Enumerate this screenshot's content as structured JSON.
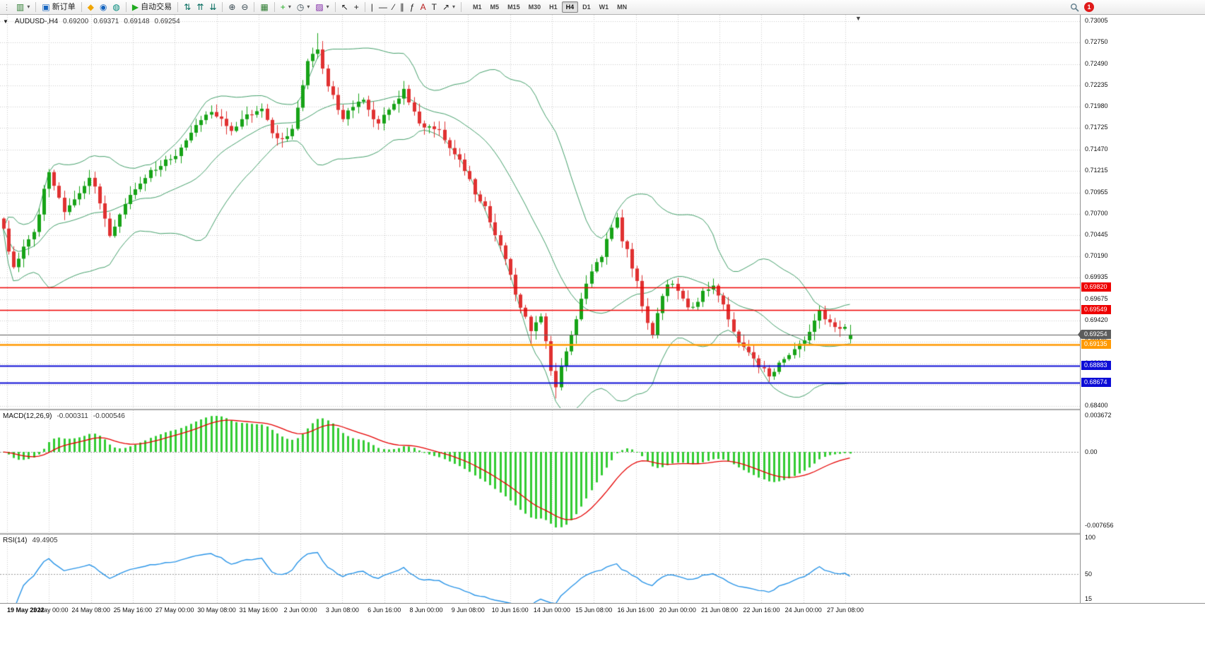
{
  "toolbar": {
    "grip_glyph": "⋮",
    "caret_glyph": "▾",
    "groups": [
      {
        "items": [
          {
            "name": "new-chart-icon",
            "glyph": "▥",
            "color": "#2f7d32",
            "caret": true
          }
        ]
      },
      {
        "items": [
          {
            "name": "new-order-button",
            "icon_name": "new-order-icon",
            "glyph": "▣",
            "color": "#1565c0",
            "label": "新订单"
          }
        ]
      },
      {
        "items": [
          {
            "name": "alerts-icon",
            "glyph": "◆",
            "color": "#f0a500"
          },
          {
            "name": "community-icon",
            "glyph": "◉",
            "color": "#1565c0"
          },
          {
            "name": "market-watch-icon",
            "glyph": "◍",
            "color": "#00897b"
          }
        ]
      },
      {
        "items": [
          {
            "name": "autotrade-button",
            "icon_name": "autotrade-play-icon",
            "glyph": "▶",
            "color": "#1faa1f",
            "label": "自动交易"
          }
        ]
      },
      {
        "items": [
          {
            "name": "tile-windows-icon",
            "glyph": "⇅",
            "color": "#00695c"
          },
          {
            "name": "cascade-windows-icon",
            "glyph": "⇈",
            "color": "#00695c"
          },
          {
            "name": "arrange-windows-icon",
            "glyph": "⇊",
            "color": "#00695c"
          }
        ]
      },
      {
        "items": [
          {
            "name": "zoom-in-icon",
            "glyph": "⊕",
            "color": "#37474f"
          },
          {
            "name": "zoom-out-icon",
            "glyph": "⊖",
            "color": "#37474f"
          }
        ]
      },
      {
        "items": [
          {
            "name": "tile-grid-icon",
            "glyph": "▦",
            "color": "#2f7d32"
          }
        ]
      },
      {
        "items": [
          {
            "name": "indicators-icon",
            "glyph": "+",
            "color": "#1faa1f",
            "caret": true
          },
          {
            "name": "periods-icon",
            "glyph": "◷",
            "color": "#37474f",
            "caret": true
          },
          {
            "name": "templates-icon",
            "glyph": "▨",
            "color": "#7b1fa2",
            "caret": true
          }
        ]
      },
      {
        "items": [
          {
            "name": "cursor-icon",
            "glyph": "↖",
            "color": "#222"
          },
          {
            "name": "crosshair-icon",
            "glyph": "+",
            "color": "#222"
          }
        ]
      },
      {
        "items": [
          {
            "name": "vertical-line-icon",
            "glyph": "|",
            "color": "#222"
          },
          {
            "name": "horizontal-line-icon",
            "glyph": "—",
            "color": "#222"
          },
          {
            "name": "trendline-icon",
            "glyph": "∕",
            "color": "#222"
          },
          {
            "name": "channel-icon",
            "glyph": "∥",
            "color": "#222"
          },
          {
            "name": "fibonacci-icon",
            "glyph": "ƒ",
            "color": "#222"
          },
          {
            "name": "text-icon",
            "glyph": "A",
            "color": "#b71c1c"
          },
          {
            "name": "label-icon",
            "glyph": "T",
            "color": "#222"
          },
          {
            "name": "arrows-icon",
            "glyph": "↗",
            "color": "#222",
            "caret": true
          }
        ]
      }
    ],
    "timeframes": [
      "M1",
      "M5",
      "M15",
      "M30",
      "H1",
      "H4",
      "D1",
      "W1",
      "MN"
    ],
    "active_timeframe": "H4",
    "notification_count": "1"
  },
  "chart": {
    "oct_glyph": "▼",
    "shift_marker_glyph": "▼",
    "symbol_header": {
      "symbol": "AUDUSD-,H4",
      "open": "0.69200",
      "high": "0.69371",
      "low": "0.69148",
      "close": "0.69254"
    },
    "price_axis_labels": [
      "0.73005",
      "0.72750",
      "0.72490",
      "0.72235",
      "0.71980",
      "0.71725",
      "0.71470",
      "0.71215",
      "0.70955",
      "0.70700",
      "0.70445",
      "0.70190",
      "0.69935",
      "0.69675",
      "0.69420",
      "0.69165",
      "0.68910",
      "0.68655",
      "0.68400"
    ],
    "levels": [
      {
        "name": "resistance-line-1",
        "value": "0.69820",
        "price": 0.6982,
        "color": "#ee0000",
        "lw": 1.5
      },
      {
        "name": "resistance-line-2",
        "value": "0.69549",
        "price": 0.69549,
        "color": "#ee0000",
        "lw": 1.5
      },
      {
        "name": "current-price-line",
        "value": "0.69254",
        "price": 0.69254,
        "color": "#5c5c5c",
        "lw": 1,
        "current": true
      },
      {
        "name": "pivot-line",
        "value": "0.69135",
        "price": 0.69135,
        "color": "#ff9900",
        "lw": 2.5
      },
      {
        "name": "support-line-1",
        "value": "0.68883",
        "price": 0.68883,
        "color": "#0d0dd6",
        "lw": 2
      },
      {
        "name": "support-line-2",
        "value": "0.68674",
        "price": 0.68674,
        "color": "#0d0dd6",
        "lw": 2
      }
    ],
    "time_axis_labels": [
      "19 May 2022",
      "23 May 00:00",
      "24 May 08:00",
      "25 May 16:00",
      "27 May 00:00",
      "30 May 08:00",
      "31 May 16:00",
      "2 Jun 00:00",
      "3 Jun 08:00",
      "6 Jun 16:00",
      "8 Jun 00:00",
      "9 Jun 08:00",
      "10 Jun 16:00",
      "14 Jun 00:00",
      "15 Jun 08:00",
      "16 Jun 16:00",
      "20 Jun 00:00",
      "21 Jun 08:00",
      "22 Jun 16:00",
      "24 Jun 00:00",
      "27 Jun 08:00"
    ],
    "macd": {
      "label": "MACD(12,26,9)",
      "value_main": "-0.000311",
      "value_signal": "-0.000546",
      "axis_top": "0.003672",
      "axis_zero": "0.00",
      "axis_bottom": "-0.007656"
    },
    "rsi": {
      "label": "RSI(14)",
      "value": "49.4905",
      "axis_top": "100",
      "axis_mid": "50",
      "axis_bottom": "15"
    }
  },
  "chart_data": {
    "type": "candlestick",
    "symbol": "AUDUSD-",
    "timeframe": "H4",
    "title": "AUDUSD- H4 with Bollinger Bands(20,2), MACD(12,26,9), RSI(14)",
    "y_range": [
      0.68374,
      0.73081
    ],
    "num_candles": 168,
    "last_ohlc": {
      "open": 0.692,
      "high": 0.69371,
      "low": 0.69148,
      "close": 0.69254
    },
    "overlays": [
      "Bollinger Bands (20,2)"
    ],
    "price_anchors": [
      [
        0,
        0.7052
      ],
      [
        1,
        0.7022
      ],
      [
        2,
        0.7004
      ],
      [
        3,
        0.7014
      ],
      [
        4,
        0.703
      ],
      [
        5,
        0.704
      ],
      [
        6,
        0.705
      ],
      [
        7,
        0.7072
      ],
      [
        8,
        0.7098
      ],
      [
        9,
        0.7118
      ],
      [
        10,
        0.7102
      ],
      [
        11,
        0.7088
      ],
      [
        12,
        0.7075
      ],
      [
        13,
        0.708
      ],
      [
        14,
        0.7086
      ],
      [
        15,
        0.7094
      ],
      [
        16,
        0.7102
      ],
      [
        17,
        0.7112
      ],
      [
        18,
        0.71
      ],
      [
        19,
        0.7085
      ],
      [
        20,
        0.7062
      ],
      [
        21,
        0.7046
      ],
      [
        22,
        0.7055
      ],
      [
        23,
        0.707
      ],
      [
        24,
        0.7082
      ],
      [
        25,
        0.7092
      ],
      [
        26,
        0.71
      ],
      [
        27,
        0.7106
      ],
      [
        28,
        0.7114
      ],
      [
        29,
        0.712
      ],
      [
        30,
        0.7124
      ],
      [
        31,
        0.7128
      ],
      [
        32,
        0.7132
      ],
      [
        33,
        0.7136
      ],
      [
        34,
        0.7142
      ],
      [
        35,
        0.715
      ],
      [
        36,
        0.7158
      ],
      [
        37,
        0.7168
      ],
      [
        38,
        0.7174
      ],
      [
        39,
        0.718
      ],
      [
        40,
        0.7186
      ],
      [
        41,
        0.719
      ],
      [
        42,
        0.7186
      ],
      [
        43,
        0.7182
      ],
      [
        44,
        0.7176
      ],
      [
        45,
        0.7172
      ],
      [
        46,
        0.7176
      ],
      [
        47,
        0.7182
      ],
      [
        48,
        0.7188
      ],
      [
        49,
        0.719
      ],
      [
        50,
        0.7194
      ],
      [
        51,
        0.7196
      ],
      [
        52,
        0.718
      ],
      [
        53,
        0.7165
      ],
      [
        54,
        0.716
      ],
      [
        55,
        0.7158
      ],
      [
        56,
        0.7162
      ],
      [
        57,
        0.717
      ],
      [
        58,
        0.7195
      ],
      [
        59,
        0.7225
      ],
      [
        60,
        0.725
      ],
      [
        61,
        0.7262
      ],
      [
        62,
        0.7268
      ],
      [
        63,
        0.7242
      ],
      [
        64,
        0.7225
      ],
      [
        65,
        0.7212
      ],
      [
        66,
        0.7196
      ],
      [
        67,
        0.7186
      ],
      [
        68,
        0.7192
      ],
      [
        69,
        0.72
      ],
      [
        70,
        0.7206
      ],
      [
        71,
        0.7208
      ],
      [
        72,
        0.7196
      ],
      [
        73,
        0.7182
      ],
      [
        74,
        0.7178
      ],
      [
        75,
        0.7186
      ],
      [
        76,
        0.7196
      ],
      [
        77,
        0.7204
      ],
      [
        78,
        0.721
      ],
      [
        79,
        0.7218
      ],
      [
        80,
        0.7202
      ],
      [
        81,
        0.719
      ],
      [
        82,
        0.7178
      ],
      [
        83,
        0.7172
      ],
      [
        84,
        0.7176
      ],
      [
        85,
        0.7174
      ],
      [
        86,
        0.7168
      ],
      [
        87,
        0.716
      ],
      [
        88,
        0.715
      ],
      [
        89,
        0.714
      ],
      [
        90,
        0.7132
      ],
      [
        91,
        0.7124
      ],
      [
        92,
        0.711
      ],
      [
        93,
        0.7094
      ],
      [
        94,
        0.7086
      ],
      [
        95,
        0.7078
      ],
      [
        96,
        0.706
      ],
      [
        97,
        0.7044
      ],
      [
        98,
        0.703
      ],
      [
        99,
        0.7018
      ],
      [
        100,
        0.6996
      ],
      [
        101,
        0.6972
      ],
      [
        102,
        0.6958
      ],
      [
        103,
        0.6944
      ],
      [
        104,
        0.693
      ],
      [
        105,
        0.6942
      ],
      [
        106,
        0.695
      ],
      [
        107,
        0.6918
      ],
      [
        108,
        0.688
      ],
      [
        109,
        0.6864
      ],
      [
        110,
        0.6886
      ],
      [
        111,
        0.6906
      ],
      [
        112,
        0.6926
      ],
      [
        113,
        0.6946
      ],
      [
        114,
        0.6968
      ],
      [
        115,
        0.6986
      ],
      [
        116,
        0.7
      ],
      [
        117,
        0.701
      ],
      [
        118,
        0.7016
      ],
      [
        119,
        0.704
      ],
      [
        120,
        0.7056
      ],
      [
        121,
        0.7064
      ],
      [
        122,
        0.704
      ],
      [
        123,
        0.7028
      ],
      [
        124,
        0.7002
      ],
      [
        125,
        0.6992
      ],
      [
        126,
        0.696
      ],
      [
        127,
        0.6938
      ],
      [
        128,
        0.6928
      ],
      [
        129,
        0.695
      ],
      [
        130,
        0.697
      ],
      [
        131,
        0.6984
      ],
      [
        132,
        0.6988
      ],
      [
        133,
        0.6976
      ],
      [
        134,
        0.697
      ],
      [
        135,
        0.696
      ],
      [
        136,
        0.6956
      ],
      [
        137,
        0.6966
      ],
      [
        138,
        0.6976
      ],
      [
        139,
        0.698
      ],
      [
        140,
        0.6982
      ],
      [
        141,
        0.6972
      ],
      [
        142,
        0.6962
      ],
      [
        143,
        0.6944
      ],
      [
        144,
        0.693
      ],
      [
        145,
        0.6914
      ],
      [
        146,
        0.6908
      ],
      [
        147,
        0.6902
      ],
      [
        148,
        0.6896
      ],
      [
        149,
        0.6888
      ],
      [
        150,
        0.6884
      ],
      [
        151,
        0.6874
      ],
      [
        152,
        0.6882
      ],
      [
        153,
        0.689
      ],
      [
        154,
        0.6898
      ],
      [
        155,
        0.6902
      ],
      [
        156,
        0.6906
      ],
      [
        157,
        0.6912
      ],
      [
        158,
        0.692
      ],
      [
        159,
        0.693
      ],
      [
        160,
        0.6944
      ],
      [
        161,
        0.6952
      ],
      [
        162,
        0.6946
      ],
      [
        163,
        0.6942
      ],
      [
        164,
        0.6936
      ],
      [
        165,
        0.693
      ],
      [
        166,
        0.6934
      ],
      [
        167,
        0.69254
      ]
    ],
    "extremes": {
      "62": {
        "high": 0.72862
      },
      "104": {
        "low": 0.6912
      },
      "109": {
        "low": 0.6849
      }
    },
    "style": {
      "up": "#17a317",
      "down": "#e03131",
      "band": "#44a06b",
      "macd_hist": "#33cc33",
      "macd_signal": "#e60000",
      "rsi_line": "#2a95e8",
      "grid": "#cdcdcd"
    }
  }
}
